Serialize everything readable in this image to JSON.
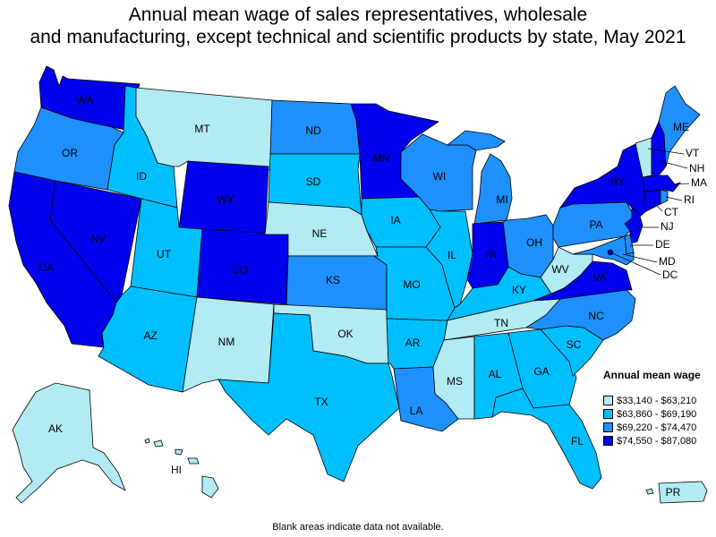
{
  "title_line1": "Annual mean wage of sales representatives, wholesale",
  "title_line2": "and manufacturing, except technical and scientific products by state, May 2021",
  "legend": {
    "title": "Annual mean wage",
    "items": [
      {
        "label": "$33,140 - $63,210",
        "color": "#b2ebf2"
      },
      {
        "label": "$63,860 - $69,190",
        "color": "#00bfff"
      },
      {
        "label": "$69,220 - $74,470",
        "color": "#1e90ff"
      },
      {
        "label": "$74,550 - $87,080",
        "color": "#0000ee"
      }
    ]
  },
  "footnote": "Blank areas indicate data not available.",
  "states": {
    "WA": {
      "label": "WA",
      "class": 3
    },
    "OR": {
      "label": "OR",
      "class": 2
    },
    "CA": {
      "label": "CA",
      "class": 3
    },
    "NV": {
      "label": "NV",
      "class": 3
    },
    "ID": {
      "label": "ID",
      "class": 1
    },
    "MT": {
      "label": "MT",
      "class": 0
    },
    "WY": {
      "label": "WY",
      "class": 3
    },
    "UT": {
      "label": "UT",
      "class": 1
    },
    "AZ": {
      "label": "AZ",
      "class": 1
    },
    "CO": {
      "label": "CO",
      "class": 3
    },
    "NM": {
      "label": "NM",
      "class": 0
    },
    "ND": {
      "label": "ND",
      "class": 2
    },
    "SD": {
      "label": "SD",
      "class": 1
    },
    "NE": {
      "label": "NE",
      "class": 0
    },
    "KS": {
      "label": "KS",
      "class": 2
    },
    "OK": {
      "label": "OK",
      "class": 0
    },
    "TX": {
      "label": "TX",
      "class": 1
    },
    "MN": {
      "label": "MN",
      "class": 3
    },
    "IA": {
      "label": "IA",
      "class": 1
    },
    "MO": {
      "label": "MO",
      "class": 1
    },
    "AR": {
      "label": "AR",
      "class": 1
    },
    "LA": {
      "label": "LA",
      "class": 2
    },
    "WI": {
      "label": "WI",
      "class": 2
    },
    "IL": {
      "label": "IL",
      "class": 1
    },
    "MI": {
      "label": "MI",
      "class": 2
    },
    "IN": {
      "label": "IN",
      "class": 3
    },
    "OH": {
      "label": "OH",
      "class": 2
    },
    "KY": {
      "label": "KY",
      "class": 1
    },
    "TN": {
      "label": "TN",
      "class": 0
    },
    "MS": {
      "label": "MS",
      "class": 0
    },
    "AL": {
      "label": "AL",
      "class": 1
    },
    "GA": {
      "label": "GA",
      "class": 1
    },
    "FL": {
      "label": "FL",
      "class": 1
    },
    "SC": {
      "label": "SC",
      "class": 1
    },
    "NC": {
      "label": "NC",
      "class": 2
    },
    "VA": {
      "label": "VA",
      "class": 3
    },
    "WV": {
      "label": "WV",
      "class": 0
    },
    "PA": {
      "label": "PA",
      "class": 2
    },
    "NY": {
      "label": "NY",
      "class": 3
    },
    "VT": {
      "label": "VT",
      "class": 0
    },
    "NH": {
      "label": "NH",
      "class": 3
    },
    "ME": {
      "label": "ME",
      "class": 2
    },
    "MA": {
      "label": "MA",
      "class": 3
    },
    "RI": {
      "label": "RI",
      "class": 2
    },
    "CT": {
      "label": "CT",
      "class": 3
    },
    "NJ": {
      "label": "NJ",
      "class": 3
    },
    "DE": {
      "label": "DE",
      "class": 2
    },
    "MD": {
      "label": "MD",
      "class": 2
    },
    "DC": {
      "label": "DC",
      "class": 3
    },
    "AK": {
      "label": "AK",
      "class": 0
    },
    "HI": {
      "label": "HI",
      "class": 0
    },
    "PR": {
      "label": "PR",
      "class": 0
    }
  }
}
